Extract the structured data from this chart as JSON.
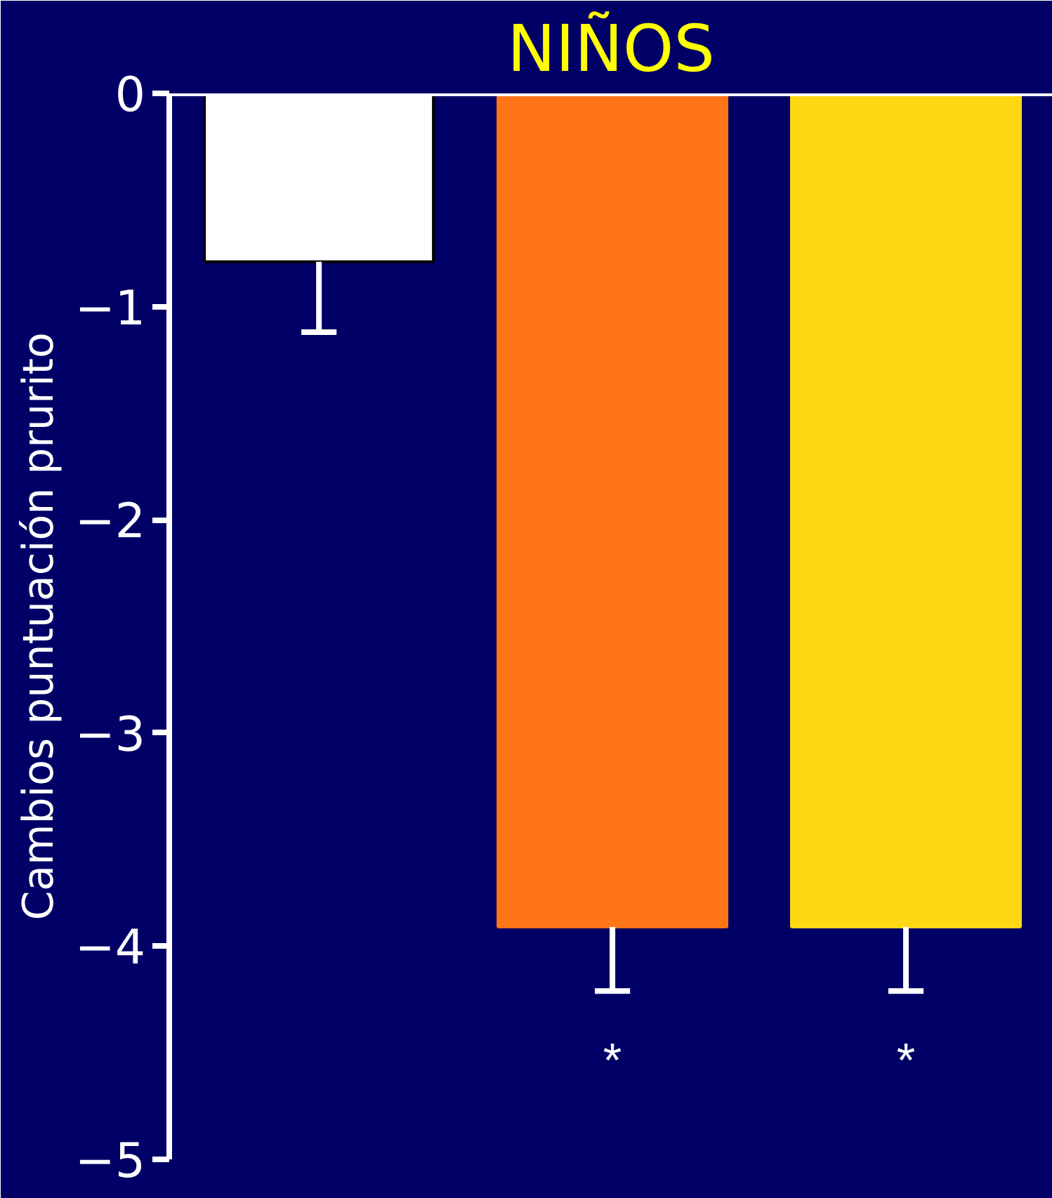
{
  "chart_data": {
    "type": "bar",
    "title": "NIÑOS",
    "ylabel": "Cambios puntuación prurito",
    "categories": [
      null,
      null,
      null
    ],
    "values": [
      -0.79,
      -3.91,
      -3.91
    ],
    "colors": [
      "#ffffff",
      "#ff7518",
      "#ffd814"
    ],
    "errors": [
      [
        -1.12,
        -0.79
      ],
      [
        -4.21,
        -3.91
      ],
      [
        -4.21,
        -3.91
      ]
    ],
    "ylim": [
      -5,
      0
    ],
    "yticks": [
      {
        "value": -5,
        "label": "−5"
      },
      {
        "value": -4,
        "label": "−4"
      },
      {
        "value": -3,
        "label": "−3"
      },
      {
        "value": -2,
        "label": "−2"
      },
      {
        "value": -1,
        "label": "−1"
      },
      0
    ],
    "annotations": [
      "*",
      "*"
    ],
    "tick_labels": "y",
    "grid": false
  }
}
